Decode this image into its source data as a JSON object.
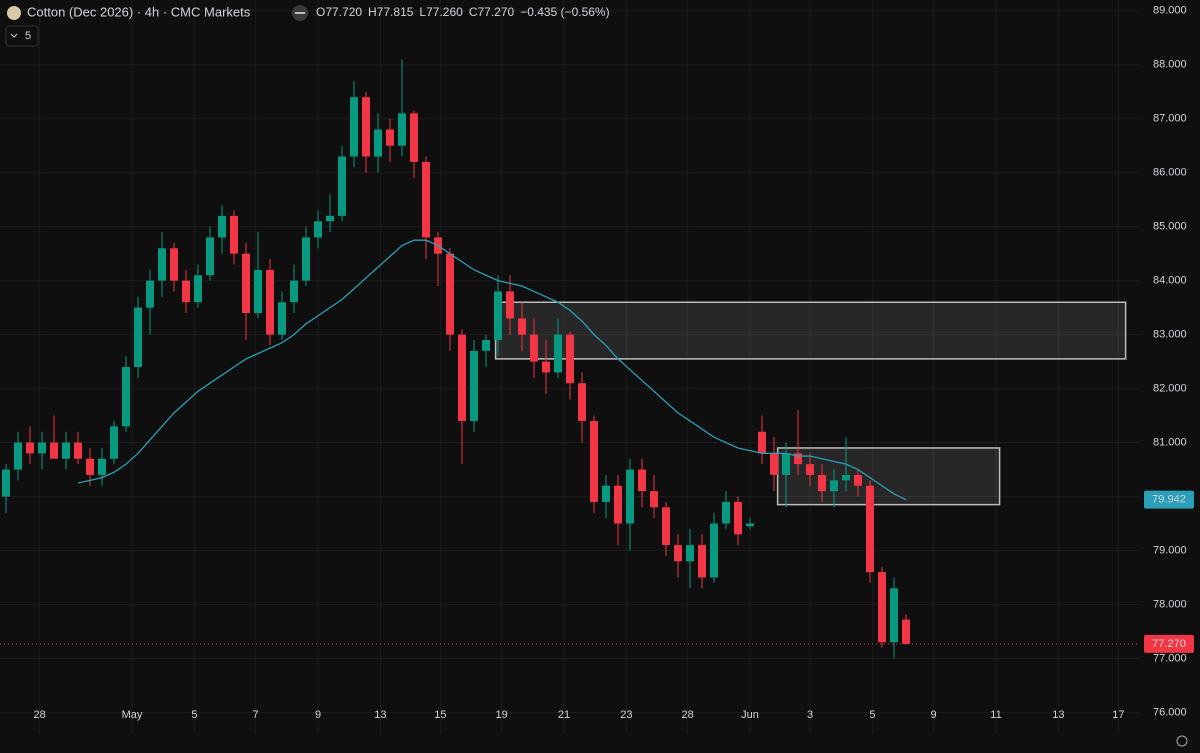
{
  "chart_data": {
    "type": "candlestick",
    "title": "Cotton (Dec 2026) · 4h · CMC Markets",
    "legend_values": [
      {
        "value": 77.72,
        "label": "O77.720"
      },
      {
        "value": 77.815,
        "label": "H77.815"
      },
      {
        "value": 77.26,
        "label": "L77.260"
      },
      {
        "value": 77.27,
        "label": "C77.270"
      },
      {
        "value": -0.435,
        "label": "−0.435 (−0.56%)"
      }
    ],
    "indicator_length": 5,
    "up_color": "#089981",
    "down_color": "#f23645",
    "ma_color": "#2b9fb8",
    "ylim": [
      75.6,
      89.2
    ],
    "yticks": [
      {
        "value": 76,
        "label": "76.000"
      },
      {
        "value": 77,
        "label": "77.000"
      },
      {
        "value": 78,
        "label": "78.000"
      },
      {
        "value": 79,
        "label": "79.000"
      },
      {
        "value": 80,
        "label": "80.000"
      },
      {
        "value": 81,
        "label": "81.000"
      },
      {
        "value": 82,
        "label": "82.000"
      },
      {
        "value": 83,
        "label": "83.000"
      },
      {
        "value": 84,
        "label": "84.000"
      },
      {
        "value": 85,
        "label": "85.000"
      },
      {
        "value": 86,
        "label": "86.000"
      },
      {
        "value": 87,
        "label": "87.000"
      },
      {
        "value": 88,
        "label": "88.000"
      },
      {
        "value": 89,
        "label": "89.000"
      }
    ],
    "xlim": [
      -0.5,
      94.5
    ],
    "xticks": [
      {
        "value": 2.8,
        "label": "28"
      },
      {
        "value": 10.5,
        "label": "May"
      },
      {
        "value": 15.7,
        "label": "5"
      },
      {
        "value": 20.8,
        "label": "7"
      },
      {
        "value": 26,
        "label": "9"
      },
      {
        "value": 31.2,
        "label": "13"
      },
      {
        "value": 36.2,
        "label": "15"
      },
      {
        "value": 41.3,
        "label": "19"
      },
      {
        "value": 46.5,
        "label": "21"
      },
      {
        "value": 51.7,
        "label": "23"
      },
      {
        "value": 56.8,
        "label": "28"
      },
      {
        "value": 62,
        "label": "Jun"
      },
      {
        "value": 67,
        "label": "3"
      },
      {
        "value": 72.2,
        "label": "5"
      },
      {
        "value": 77.3,
        "label": "9"
      },
      {
        "value": 82.5,
        "label": "11"
      },
      {
        "value": 87.7,
        "label": "13"
      },
      {
        "value": 92.7,
        "label": "17"
      }
    ],
    "candles": [
      [
        80.0,
        80.6,
        79.7,
        80.5
      ],
      [
        80.5,
        81.2,
        80.3,
        81.0
      ],
      [
        81.0,
        81.3,
        80.6,
        80.8
      ],
      [
        80.8,
        81.2,
        80.5,
        81.0
      ],
      [
        81.0,
        81.5,
        80.7,
        80.7
      ],
      [
        80.7,
        81.2,
        80.5,
        81.0
      ],
      [
        81.0,
        81.2,
        80.6,
        80.7
      ],
      [
        80.7,
        80.9,
        80.2,
        80.4
      ],
      [
        80.4,
        80.9,
        80.2,
        80.7
      ],
      [
        80.7,
        81.4,
        80.6,
        81.3
      ],
      [
        81.3,
        82.6,
        81.2,
        82.4
      ],
      [
        82.4,
        83.7,
        82.2,
        83.5
      ],
      [
        83.5,
        84.2,
        83.0,
        84.0
      ],
      [
        84.0,
        84.9,
        83.7,
        84.6
      ],
      [
        84.6,
        84.7,
        83.8,
        84.0
      ],
      [
        84.0,
        84.2,
        83.4,
        83.6
      ],
      [
        83.6,
        84.3,
        83.5,
        84.1
      ],
      [
        84.1,
        85.0,
        84.0,
        84.8
      ],
      [
        84.8,
        85.4,
        84.5,
        85.2
      ],
      [
        85.2,
        85.3,
        84.3,
        84.5
      ],
      [
        84.5,
        84.7,
        82.9,
        83.4
      ],
      [
        83.4,
        84.9,
        83.3,
        84.2
      ],
      [
        84.2,
        84.4,
        82.8,
        83.0
      ],
      [
        83.0,
        83.8,
        82.9,
        83.6
      ],
      [
        83.6,
        84.3,
        83.4,
        84.0
      ],
      [
        84.0,
        85.0,
        83.9,
        84.8
      ],
      [
        84.8,
        85.3,
        84.6,
        85.1
      ],
      [
        85.1,
        85.6,
        84.9,
        85.2
      ],
      [
        85.2,
        86.5,
        85.1,
        86.3
      ],
      [
        86.3,
        87.7,
        86.1,
        87.4
      ],
      [
        87.4,
        87.5,
        86.0,
        86.3
      ],
      [
        86.3,
        87.1,
        86.0,
        86.8
      ],
      [
        86.8,
        87.0,
        86.2,
        86.5
      ],
      [
        86.5,
        88.1,
        86.3,
        87.1
      ],
      [
        87.1,
        87.15,
        85.9,
        86.2
      ],
      [
        86.2,
        86.3,
        84.4,
        84.8
      ],
      [
        84.8,
        84.9,
        83.9,
        84.5
      ],
      [
        84.5,
        84.6,
        82.7,
        83.0
      ],
      [
        83.0,
        83.1,
        80.6,
        81.4
      ],
      [
        81.4,
        82.9,
        81.2,
        82.7
      ],
      [
        82.7,
        83.0,
        82.4,
        82.9
      ],
      [
        82.9,
        84.1,
        82.6,
        83.8
      ],
      [
        83.8,
        84.1,
        83.0,
        83.3
      ],
      [
        83.3,
        83.6,
        82.7,
        83.0
      ],
      [
        83.0,
        83.3,
        82.2,
        82.5
      ],
      [
        82.5,
        82.9,
        81.9,
        82.3
      ],
      [
        82.3,
        83.3,
        82.2,
        83.0
      ],
      [
        83.0,
        83.05,
        81.8,
        82.1
      ],
      [
        82.1,
        82.3,
        81.0,
        81.4
      ],
      [
        81.4,
        81.5,
        79.7,
        79.9
      ],
      [
        79.9,
        80.4,
        79.6,
        80.2
      ],
      [
        80.2,
        80.4,
        79.1,
        79.5
      ],
      [
        79.5,
        80.7,
        79.0,
        80.5
      ],
      [
        80.5,
        80.7,
        79.8,
        80.1
      ],
      [
        80.1,
        80.4,
        79.6,
        79.8
      ],
      [
        79.8,
        79.9,
        78.9,
        79.1
      ],
      [
        79.1,
        79.3,
        78.5,
        78.8
      ],
      [
        78.8,
        79.4,
        78.3,
        79.1
      ],
      [
        79.1,
        79.3,
        78.3,
        78.5
      ],
      [
        78.5,
        79.7,
        78.4,
        79.5
      ],
      [
        79.5,
        80.1,
        79.4,
        79.9
      ],
      [
        79.9,
        80.0,
        79.1,
        79.3
      ],
      [
        79.45,
        79.6,
        79.4,
        79.5
      ],
      [
        81.2,
        81.5,
        80.6,
        80.8
      ],
      [
        80.8,
        81.1,
        80.1,
        80.4
      ],
      [
        80.4,
        81.0,
        79.8,
        80.8
      ],
      [
        80.8,
        81.6,
        80.4,
        80.6
      ],
      [
        80.6,
        80.8,
        80.2,
        80.4
      ],
      [
        80.4,
        80.6,
        79.9,
        80.1
      ],
      [
        80.1,
        80.5,
        79.8,
        80.3
      ],
      [
        80.3,
        81.1,
        80.1,
        80.4
      ],
      [
        80.4,
        80.5,
        80.0,
        80.2
      ],
      [
        80.2,
        80.3,
        78.4,
        78.6
      ],
      [
        78.6,
        78.7,
        77.2,
        77.3
      ],
      [
        77.3,
        78.5,
        77.0,
        78.3
      ],
      [
        77.72,
        77.815,
        77.26,
        77.27
      ]
    ],
    "ma_values": [
      null,
      null,
      null,
      null,
      null,
      null,
      80.25,
      80.3,
      80.35,
      80.45,
      80.6,
      80.8,
      81.05,
      81.3,
      81.55,
      81.75,
      81.95,
      82.1,
      82.25,
      82.4,
      82.55,
      82.65,
      82.75,
      82.85,
      83.0,
      83.2,
      83.35,
      83.5,
      83.65,
      83.85,
      84.05,
      84.25,
      84.45,
      84.65,
      84.75,
      84.75,
      84.65,
      84.5,
      84.35,
      84.2,
      84.1,
      84.0,
      83.95,
      83.9,
      83.8,
      83.7,
      83.6,
      83.45,
      83.25,
      83.0,
      82.8,
      82.55,
      82.35,
      82.15,
      81.95,
      81.75,
      81.55,
      81.4,
      81.25,
      81.1,
      81.0,
      80.9,
      80.85,
      80.8,
      80.8,
      80.8,
      80.75,
      80.75,
      80.7,
      80.65,
      80.6,
      80.5,
      80.35,
      80.2,
      80.05,
      79.942
    ],
    "ma_label": {
      "value": 79.942,
      "label": "79.942"
    },
    "last_label": {
      "value": 77.27,
      "label": "77.270"
    },
    "zones": [
      {
        "x": [
          40.8,
          93.3
        ],
        "y": [
          82.55,
          83.6
        ]
      },
      {
        "x": [
          64.3,
          82.8
        ],
        "y": [
          79.85,
          80.9
        ]
      }
    ]
  }
}
